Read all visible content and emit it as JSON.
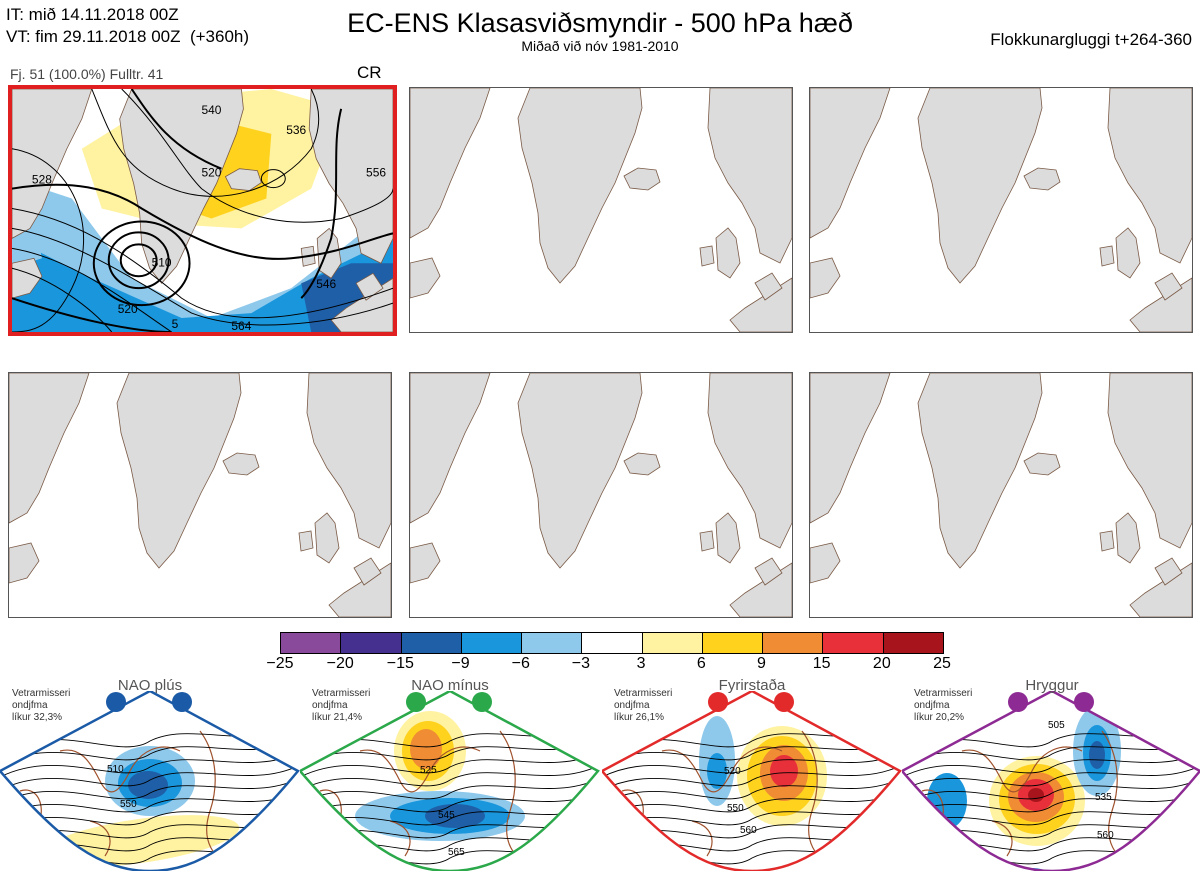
{
  "header": {
    "it_line": "IT: mið 14.11.2018 00Z",
    "vt_line": "VT: fim 29.11.2018 00Z  (+360h)",
    "title": "EC-ENS Klasasviðsmyndir - 500 hPa hæð",
    "subtitle": "Miðað við nóv 1981-2010",
    "window": "Flokkunargluggi t+264-360"
  },
  "panel1": {
    "info": "Fj. 51 (100.0%)   Fulltr. 41",
    "regime": "CR",
    "contour_labels": [
      "510",
      "520",
      "528",
      "536",
      "540",
      "546",
      "556",
      "564",
      "520",
      "5"
    ]
  },
  "colorbar": {
    "colors": [
      "#8a4a9c",
      "#45308f",
      "#1e5fa8",
      "#1a96dc",
      "#8ec9ec",
      "#ffffff",
      "#fff2a0",
      "#ffd21e",
      "#f08c33",
      "#e8303a",
      "#a8141b"
    ],
    "ticks": [
      "−25",
      "−20",
      "−15",
      "−9",
      "−6",
      "−3",
      "3",
      "6",
      "9",
      "15",
      "20",
      "25"
    ]
  },
  "regimes": [
    {
      "name": "NAO plús",
      "stat_label": "Vetrarmisseri",
      "stat_line2": "ondjfma",
      "stat_line3": "líkur 32,3%",
      "color": "#1a5aa6",
      "labels": [
        "510",
        "550"
      ]
    },
    {
      "name": "NAO mínus",
      "stat_label": "Vetrarmisseri",
      "stat_line2": "ondjfma",
      "stat_line3": "líkur 21,4%",
      "color": "#2aa84a",
      "labels": [
        "525",
        "545",
        "565"
      ]
    },
    {
      "name": "Fyrirstaða",
      "stat_label": "Vetrarmisseri",
      "stat_line2": "ondjfma",
      "stat_line3": "líkur 26,1%",
      "color": "#e32a2a",
      "labels": [
        "520",
        "550",
        "560"
      ]
    },
    {
      "name": "Hryggur",
      "stat_label": "Vetrarmisseri",
      "stat_line2": "ondjfma",
      "stat_line3": "líkur 20,2%",
      "color": "#8d2a93",
      "labels": [
        "505",
        "535",
        "560"
      ]
    }
  ]
}
